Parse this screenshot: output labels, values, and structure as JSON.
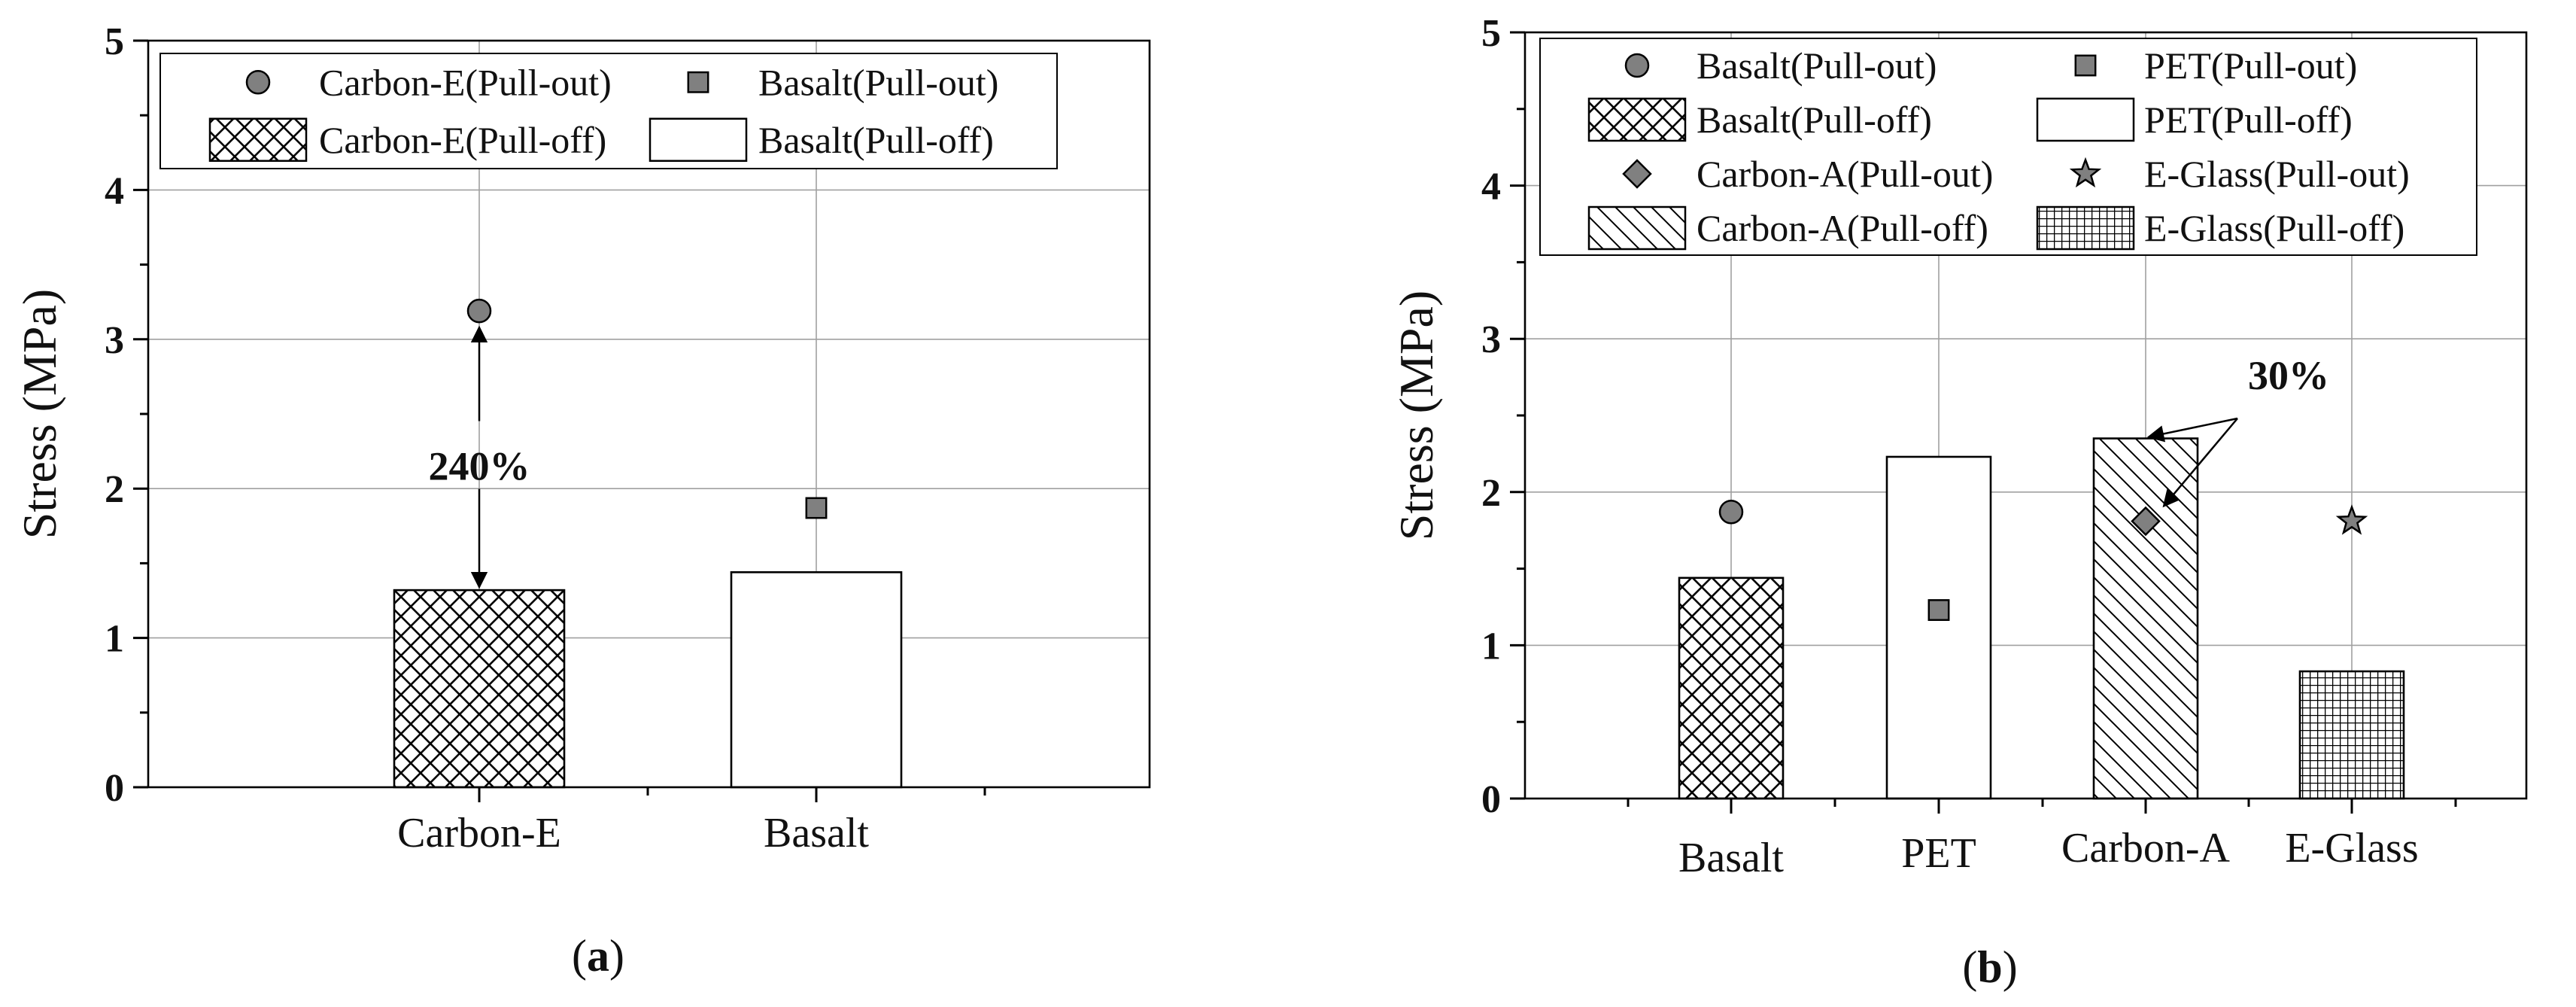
{
  "chart_data": [
    {
      "type": "bar",
      "panel": "(a)",
      "panel_letter": "a",
      "categories": [
        "Carbon-E",
        "Basalt"
      ],
      "ylabel": "Stress (MPa)",
      "xlabel": "",
      "ylim": [
        0,
        5
      ],
      "yticks": [
        "0",
        "1",
        "2",
        "3",
        "4",
        "5"
      ],
      "grid": true,
      "legend_position": "top",
      "series": [
        {
          "name": "Pull-off",
          "type": "bar",
          "values": [
            1.32,
            1.44
          ],
          "patterns": [
            "crosshatch",
            "none"
          ]
        },
        {
          "name": "Pull-out",
          "type": "scatter",
          "values": [
            3.19,
            1.87
          ],
          "markers": [
            "circle",
            "square"
          ]
        }
      ],
      "legend": [
        {
          "label": "Carbon-E(Pull-out)",
          "symbol": "circle"
        },
        {
          "label": "Basalt(Pull-out)",
          "symbol": "square"
        },
        {
          "label": "Carbon-E(Pull-off)",
          "symbol": "crosshatch"
        },
        {
          "label": "Basalt(Pull-off)",
          "symbol": "none"
        }
      ],
      "annotations": [
        {
          "text": "240%",
          "category": "Carbon-E",
          "from": 1.32,
          "to": 3.08,
          "label_y": 2.15
        }
      ]
    },
    {
      "type": "bar",
      "panel": "(b)",
      "panel_letter": "b",
      "categories": [
        "Basalt",
        "PET",
        "Carbon-A",
        "E-Glass"
      ],
      "ylabel": "Stress (MPa)",
      "xlabel": "",
      "ylim": [
        0,
        5
      ],
      "yticks": [
        "0",
        "1",
        "2",
        "3",
        "4",
        "5"
      ],
      "grid": true,
      "legend_position": "top",
      "series": [
        {
          "name": "Pull-off",
          "type": "bar",
          "values": [
            1.44,
            2.23,
            2.35,
            0.83
          ],
          "patterns": [
            "crosshatch",
            "none",
            "diagonal",
            "grid"
          ]
        },
        {
          "name": "Pull-out",
          "type": "scatter",
          "values": [
            1.87,
            1.23,
            1.81,
            1.81
          ],
          "markers": [
            "circle",
            "square",
            "diamond",
            "star"
          ]
        }
      ],
      "legend": [
        {
          "label": "Basalt(Pull-out)",
          "symbol": "circle"
        },
        {
          "label": "PET(Pull-out)",
          "symbol": "square"
        },
        {
          "label": "Basalt(Pull-off)",
          "symbol": "crosshatch"
        },
        {
          "label": "PET(Pull-off)",
          "symbol": "none"
        },
        {
          "label": "Carbon-A(Pull-out)",
          "symbol": "diamond"
        },
        {
          "label": "E-Glass(Pull-out)",
          "symbol": "star"
        },
        {
          "label": "Carbon-A(Pull-off)",
          "symbol": "diagonal"
        },
        {
          "label": "E-Glass(Pull-off)",
          "symbol": "grid"
        }
      ],
      "annotations": [
        {
          "text": "30%",
          "category": "Carbon-A",
          "from": 2.35,
          "to": 1.81
        }
      ]
    }
  ],
  "colors": {
    "marker_fill": "#808080",
    "bar_stroke": "#000000",
    "grid": "#a0a0a0"
  }
}
